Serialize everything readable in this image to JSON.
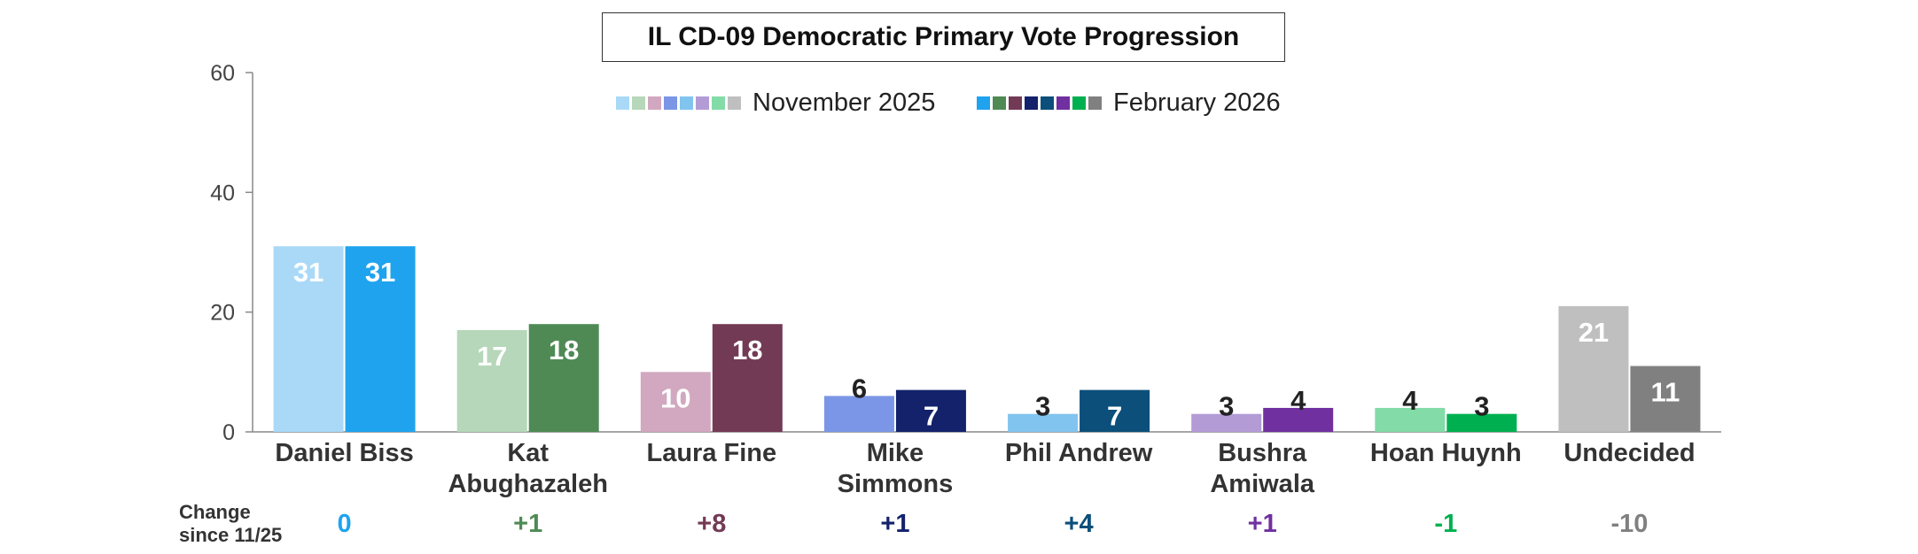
{
  "chart_data": {
    "type": "bar",
    "title": "IL CD-09 Democratic Primary Vote Progression",
    "xlabel": "",
    "ylabel": "",
    "ylim": [
      0,
      60
    ],
    "yticks": [
      0,
      20,
      40,
      60
    ],
    "grid": false,
    "legend_position": "top-center",
    "categories": [
      [
        "Daniel Biss"
      ],
      [
        "Kat",
        "Abughazaleh"
      ],
      [
        "Laura Fine"
      ],
      [
        "Mike",
        "Simmons"
      ],
      [
        "Phil Andrew"
      ],
      [
        "Bushra",
        "Amiwala"
      ],
      [
        "Hoan Huynh"
      ],
      [
        "Undecided"
      ]
    ],
    "series": [
      {
        "name": "November 2025",
        "values": [
          31,
          17,
          10,
          6,
          3,
          3,
          4,
          21
        ],
        "colors": [
          "#a9d9f7",
          "#b6d7b9",
          "#d1a8bf",
          "#7b96e6",
          "#81c4ef",
          "#b39cd6",
          "#83dba7",
          "#bfbfbf"
        ],
        "label_colors": [
          "#ffffff",
          "#ffffff",
          "#ffffff",
          "#ffffff",
          "#222222",
          "#222222",
          "#222222",
          "#ffffff"
        ]
      },
      {
        "name": "February 2026",
        "values": [
          31,
          18,
          18,
          7,
          7,
          4,
          3,
          11
        ],
        "colors": [
          "#1fa3ef",
          "#4f8a55",
          "#733a55",
          "#13226b",
          "#0b4f7a",
          "#7030a0",
          "#00b050",
          "#808080"
        ],
        "label_colors": [
          "#ffffff",
          "#ffffff",
          "#ffffff",
          "#ffffff",
          "#ffffff",
          "#222222",
          "#222222",
          "#ffffff"
        ]
      }
    ],
    "change": {
      "caption": [
        "Change",
        "since 11/25"
      ],
      "values": [
        "0",
        "+1",
        "+8",
        "+1",
        "+4",
        "+1",
        "-1",
        "-10"
      ],
      "colors": [
        "#1fa3ef",
        "#4f8a55",
        "#733a55",
        "#13226b",
        "#0b4f7a",
        "#7030a0",
        "#00b050",
        "#808080"
      ]
    }
  }
}
